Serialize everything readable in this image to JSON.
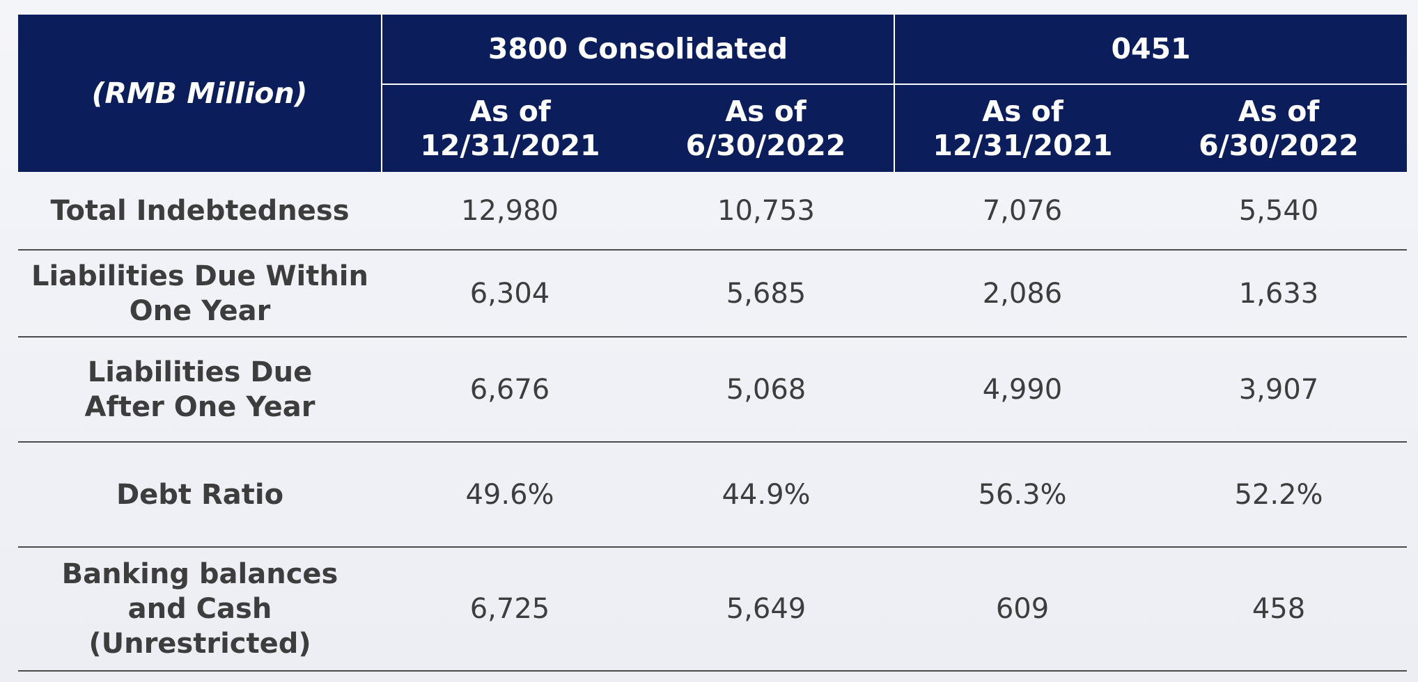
{
  "table": {
    "unit_header": "(RMB Million)",
    "groups": [
      {
        "label": "3800 Consolidated"
      },
      {
        "label": "0451"
      }
    ],
    "date_columns": [
      "As of\n12/31/2021",
      "As of\n6/30/2022",
      "As of\n12/31/2021",
      "As of\n6/30/2022"
    ],
    "rows": [
      {
        "label": "Total Indebtedness",
        "values": [
          "12,980",
          "10,753",
          "7,076",
          "5,540"
        ]
      },
      {
        "label": "Liabilities Due Within\nOne Year",
        "values": [
          "6,304",
          "5,685",
          "2,086",
          "1,633"
        ]
      },
      {
        "label": "Liabilities Due\nAfter One Year",
        "values": [
          "6,676",
          "5,068",
          "4,990",
          "3,907"
        ]
      },
      {
        "label": "Debt Ratio",
        "values": [
          "49.6%",
          "44.9%",
          "56.3%",
          "52.2%"
        ]
      },
      {
        "label": "Banking balances\nand Cash\n(Unrestricted)",
        "values": [
          "6,725",
          "5,649",
          "609",
          "458"
        ]
      }
    ]
  },
  "colors": {
    "header_background": "#0b1e5b",
    "header_text": "#ffffff",
    "body_text": "#3d3d3d",
    "row_divider": "#4a4a4a"
  }
}
